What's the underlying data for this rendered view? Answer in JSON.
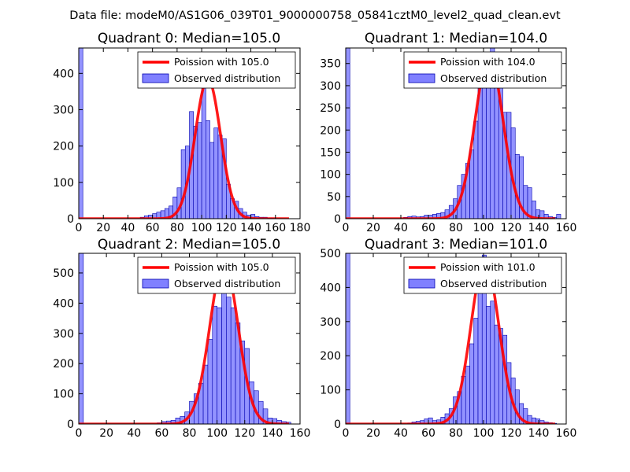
{
  "suptitle": "Data file: modeM0/AS1G06_039T01_9000000758_05841cztM0_level2_quad_clean.evt",
  "colors": {
    "bar_fill": "#8080ff",
    "bar_edge": "#0000b0",
    "curve": "#ff0000",
    "axis": "#000000",
    "legend_edge": "#000000"
  },
  "chart_data": [
    {
      "type": "bar",
      "title": "Quadrant 0: Median=105.0",
      "xlim": [
        0,
        180
      ],
      "ylim": [
        0,
        470
      ],
      "xticks": [
        0,
        20,
        40,
        60,
        80,
        100,
        120,
        140,
        160,
        180
      ],
      "yticks": [
        0,
        100,
        200,
        300,
        400
      ],
      "bin_width": 3.33,
      "zero_bin": 470,
      "bins_x": [
        50,
        53.33,
        56.67,
        60,
        63.33,
        66.67,
        70,
        73.33,
        76.67,
        80,
        83.33,
        86.67,
        90,
        93.33,
        96.67,
        100,
        103.33,
        106.67,
        110,
        113.33,
        116.67,
        120,
        123.33,
        126.67,
        130,
        133.33,
        136.67,
        140,
        143.33,
        146.67,
        150,
        153.33,
        156.67
      ],
      "values": [
        4,
        8,
        10,
        14,
        18,
        22,
        28,
        35,
        60,
        85,
        190,
        200,
        295,
        255,
        265,
        405,
        270,
        210,
        250,
        230,
        220,
        95,
        55,
        48,
        28,
        18,
        10,
        12,
        6,
        4,
        4,
        2,
        2
      ],
      "curve_mean": 105.0,
      "curve_peak": 385,
      "legend": [
        "Poission with 105.0",
        "Observed distribution"
      ]
    },
    {
      "type": "bar",
      "title": "Quadrant 1: Median=104.0",
      "xlim": [
        0,
        160
      ],
      "ylim": [
        0,
        385
      ],
      "xticks": [
        0,
        20,
        40,
        60,
        80,
        100,
        120,
        140,
        160
      ],
      "yticks": [
        0,
        50,
        100,
        150,
        200,
        250,
        300,
        350
      ],
      "bin_width": 3.0,
      "zero_bin": 385,
      "bins_x": [
        42,
        45,
        48,
        51,
        54,
        57,
        60,
        63,
        66,
        69,
        72,
        75,
        78,
        81,
        84,
        87,
        90,
        93,
        96,
        99,
        102,
        105,
        108,
        111,
        114,
        117,
        120,
        123,
        126,
        129,
        132,
        135,
        138,
        141,
        144,
        147,
        150,
        153
      ],
      "values": [
        3,
        5,
        6,
        4,
        5,
        8,
        8,
        10,
        12,
        14,
        20,
        30,
        45,
        75,
        100,
        125,
        155,
        220,
        310,
        345,
        345,
        385,
        350,
        300,
        240,
        240,
        205,
        145,
        140,
        75,
        70,
        40,
        20,
        18,
        10,
        5,
        3,
        10
      ],
      "curve_mean": 104.0,
      "curve_peak": 365,
      "legend": [
        "Poission with 104.0",
        "Observed distribution"
      ]
    },
    {
      "type": "bar",
      "title": "Quadrant 2: Median=105.0",
      "xlim": [
        0,
        160
      ],
      "ylim": [
        0,
        565
      ],
      "xticks": [
        0,
        20,
        40,
        60,
        80,
        100,
        120,
        140,
        160
      ],
      "yticks": [
        0,
        100,
        200,
        300,
        400,
        500
      ],
      "bin_width": 3.33,
      "zero_bin": 565,
      "bins_x": [
        56.67,
        60,
        63.33,
        66.67,
        70,
        73.33,
        76.67,
        80,
        83.33,
        86.67,
        90,
        93.33,
        96.67,
        100,
        103.33,
        106.67,
        110,
        113.33,
        116.67,
        120,
        123.33,
        126.67,
        130,
        133.33,
        136.67,
        140,
        143.33,
        146.67,
        150
      ],
      "values": [
        4,
        8,
        10,
        12,
        20,
        25,
        40,
        75,
        100,
        135,
        195,
        280,
        390,
        385,
        540,
        420,
        385,
        335,
        275,
        250,
        140,
        110,
        75,
        50,
        20,
        18,
        12,
        8,
        6
      ],
      "curve_mean": 105.0,
      "curve_peak": 535,
      "legend": [
        "Poission with 105.0",
        "Observed distribution"
      ]
    },
    {
      "type": "bar",
      "title": "Quadrant 3: Median=101.0",
      "xlim": [
        0,
        160
      ],
      "ylim": [
        0,
        500
      ],
      "xticks": [
        0,
        20,
        40,
        60,
        80,
        100,
        120,
        140,
        160
      ],
      "yticks": [
        0,
        100,
        200,
        300,
        400,
        500
      ],
      "bin_width": 3.0,
      "zero_bin": 500,
      "bins_x": [
        45,
        48,
        51,
        54,
        57,
        60,
        63,
        66,
        69,
        72,
        75,
        78,
        81,
        84,
        87,
        90,
        93,
        96,
        99,
        102,
        105,
        108,
        111,
        114,
        117,
        120,
        123,
        126,
        129,
        132,
        135,
        138,
        141,
        144,
        147,
        150
      ],
      "values": [
        3,
        6,
        8,
        10,
        15,
        18,
        10,
        12,
        20,
        30,
        45,
        80,
        95,
        140,
        170,
        235,
        310,
        410,
        495,
        345,
        360,
        290,
        280,
        260,
        180,
        135,
        100,
        60,
        45,
        25,
        18,
        15,
        10,
        6,
        4,
        2
      ],
      "curve_mean": 101.0,
      "curve_peak": 480,
      "legend": [
        "Poission with 101.0",
        "Observed distribution"
      ]
    }
  ]
}
